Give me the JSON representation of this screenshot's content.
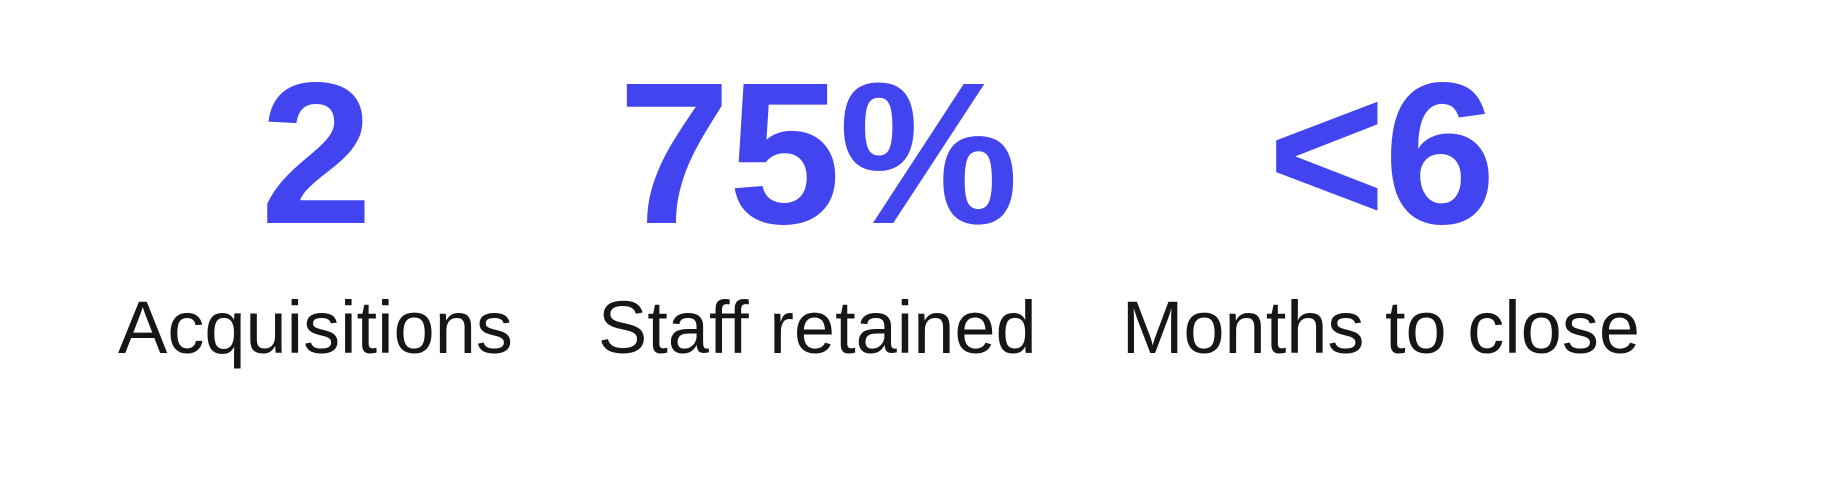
{
  "page": {
    "background_color": "#ffffff",
    "accent_color": "#4245ef",
    "label_color": "#161616"
  },
  "stats": [
    {
      "value": "2",
      "label": "Acquisitions"
    },
    {
      "value": "75%",
      "label": "Staff retained"
    },
    {
      "value": "<6",
      "label": "Months to close"
    }
  ]
}
